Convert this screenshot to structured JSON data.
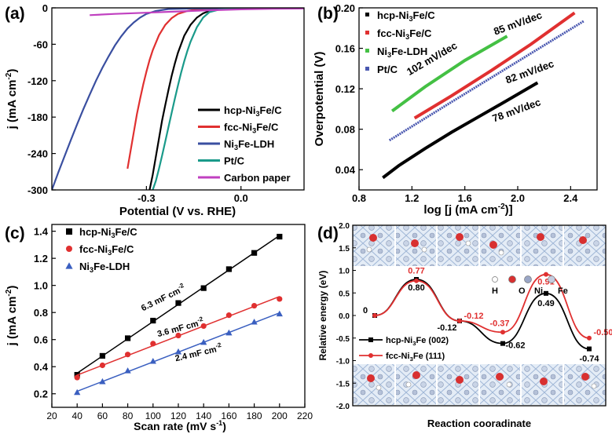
{
  "chart_data": [
    {
      "panel": "(a)",
      "type": "line",
      "xlabel": "Potential (V vs. RHE)",
      "ylabel_main": "j (mA cm",
      "ylabel_sup": "-2",
      "ylabel_end": ")",
      "xlim": [
        -0.6,
        0.2
      ],
      "ylim": [
        -300,
        0
      ],
      "xticks": [
        {
          "v": -0.3,
          "label": "-0.3"
        },
        {
          "v": 0.0,
          "label": "0.0"
        }
      ],
      "yticks": [
        {
          "v": 0,
          "label": "0"
        },
        {
          "v": -60,
          "label": "-60"
        },
        {
          "v": -120,
          "label": "-120"
        },
        {
          "v": -180,
          "label": "-180"
        },
        {
          "v": -240,
          "label": "-240"
        },
        {
          "v": -300,
          "label": "-300"
        }
      ],
      "legend": [
        {
          "text": "hcp-Ni",
          "sub": "3",
          "tail": "Fe/C"
        },
        {
          "text": "fcc-Ni",
          "sub": "3",
          "tail": "Fe/C"
        },
        {
          "text": "Ni",
          "sub": "3",
          "tail": "Fe-LDH"
        },
        {
          "text": "Pt/C",
          "sub": "",
          "tail": ""
        },
        {
          "text": "Carbon paper",
          "sub": "",
          "tail": ""
        }
      ],
      "series": [
        {
          "color": "#000000",
          "points": [
            [
              -0.29,
              -300
            ],
            [
              -0.28,
              -275
            ],
            [
              -0.27,
              -245
            ],
            [
              -0.26,
              -215
            ],
            [
              -0.25,
              -185
            ],
            [
              -0.24,
              -160
            ],
            [
              -0.23,
              -135
            ],
            [
              -0.22,
              -112
            ],
            [
              -0.21,
              -92
            ],
            [
              -0.2,
              -74
            ],
            [
              -0.18,
              -46
            ],
            [
              -0.16,
              -28
            ],
            [
              -0.14,
              -16
            ],
            [
              -0.12,
              -9
            ],
            [
              -0.1,
              -5
            ],
            [
              -0.07,
              -2
            ],
            [
              -0.03,
              -1
            ],
            [
              0.0,
              -0.5
            ],
            [
              0.2,
              -0.2
            ]
          ]
        },
        {
          "color": "#e03030",
          "points": [
            [
              -0.36,
              -265
            ],
            [
              -0.35,
              -235
            ],
            [
              -0.34,
              -205
            ],
            [
              -0.33,
              -175
            ],
            [
              -0.32,
              -150
            ],
            [
              -0.31,
              -126
            ],
            [
              -0.3,
              -105
            ],
            [
              -0.29,
              -86
            ],
            [
              -0.28,
              -70
            ],
            [
              -0.26,
              -45
            ],
            [
              -0.24,
              -28
            ],
            [
              -0.22,
              -17
            ],
            [
              -0.2,
              -10
            ],
            [
              -0.17,
              -5
            ],
            [
              -0.13,
              -2
            ],
            [
              -0.08,
              -1
            ],
            [
              0.0,
              -0.5
            ],
            [
              0.2,
              -0.2
            ]
          ]
        },
        {
          "color": "#3a4fa0",
          "points": [
            [
              -0.6,
              -300
            ],
            [
              -0.58,
              -272
            ],
            [
              -0.56,
              -245
            ],
            [
              -0.54,
              -218
            ],
            [
              -0.52,
              -192
            ],
            [
              -0.5,
              -167
            ],
            [
              -0.48,
              -143
            ],
            [
              -0.46,
              -120
            ],
            [
              -0.44,
              -99
            ],
            [
              -0.42,
              -80
            ],
            [
              -0.4,
              -62
            ],
            [
              -0.38,
              -47
            ],
            [
              -0.36,
              -34
            ],
            [
              -0.34,
              -24
            ],
            [
              -0.32,
              -16
            ],
            [
              -0.3,
              -10
            ],
            [
              -0.27,
              -5
            ],
            [
              -0.23,
              -2
            ],
            [
              -0.15,
              -1
            ],
            [
              0.0,
              -0.5
            ],
            [
              0.2,
              -0.2
            ]
          ]
        },
        {
          "color": "#1a9a8a",
          "points": [
            [
              -0.28,
              -300
            ],
            [
              -0.27,
              -285
            ],
            [
              -0.26,
              -265
            ],
            [
              -0.25,
              -243
            ],
            [
              -0.24,
              -220
            ],
            [
              -0.23,
              -196
            ],
            [
              -0.22,
              -173
            ],
            [
              -0.21,
              -150
            ],
            [
              -0.2,
              -128
            ],
            [
              -0.19,
              -107
            ],
            [
              -0.18,
              -88
            ],
            [
              -0.17,
              -71
            ],
            [
              -0.16,
              -56
            ],
            [
              -0.14,
              -32
            ],
            [
              -0.12,
              -16
            ],
            [
              -0.1,
              -7
            ],
            [
              -0.07,
              -3
            ],
            [
              -0.03,
              -1
            ],
            [
              0.2,
              -0.2
            ]
          ]
        },
        {
          "color": "#c040c0",
          "points": [
            [
              -0.48,
              -12
            ],
            [
              -0.4,
              -10
            ],
            [
              -0.3,
              -8
            ],
            [
              -0.2,
              -6
            ],
            [
              -0.1,
              -4
            ],
            [
              0.0,
              -2.5
            ],
            [
              0.1,
              -1.5
            ],
            [
              0.2,
              -1
            ]
          ]
        }
      ]
    },
    {
      "panel": "(b)",
      "type": "line",
      "xlabel_main": "log [j (mA cm",
      "xlabel_sup": "-2",
      "xlabel_end": ")]",
      "ylabel": "Overpotential (V)",
      "xlim": [
        0.8,
        2.6
      ],
      "ylim": [
        0.02,
        0.2
      ],
      "xticks": [
        {
          "v": 0.8,
          "label": "0.8"
        },
        {
          "v": 1.2,
          "label": "1.2"
        },
        {
          "v": 1.6,
          "label": "1.6"
        },
        {
          "v": 2.0,
          "label": "2.0"
        },
        {
          "v": 2.4,
          "label": "2.4"
        }
      ],
      "yticks": [
        {
          "v": 0.04,
          "label": "0.04"
        },
        {
          "v": 0.08,
          "label": "0.08"
        },
        {
          "v": 0.12,
          "label": "0.12"
        },
        {
          "v": 0.16,
          "label": "0.16"
        },
        {
          "v": 0.2,
          "label": "0.20"
        }
      ],
      "legend": [
        {
          "text": "hcp-Ni",
          "sub": "3",
          "tail": "Fe/C"
        },
        {
          "text": "fcc-Ni",
          "sub": "3",
          "tail": "Fe/C"
        },
        {
          "text": "Ni",
          "sub": "3",
          "tail": "Fe-LDH"
        },
        {
          "text": "Pt/C",
          "sub": "",
          "tail": ""
        }
      ],
      "series": [
        {
          "color": "#000000",
          "width": 4,
          "points": [
            [
              0.98,
              0.032
            ],
            [
              1.1,
              0.044
            ],
            [
              1.3,
              0.061
            ],
            [
              1.5,
              0.077
            ],
            [
              1.7,
              0.092
            ],
            [
              1.9,
              0.107
            ],
            [
              2.15,
              0.126
            ]
          ]
        },
        {
          "color": "#e03030",
          "width": 4,
          "points": [
            [
              1.22,
              0.091
            ],
            [
              1.5,
              0.113
            ],
            [
              1.8,
              0.138
            ],
            [
              2.1,
              0.164
            ],
            [
              2.43,
              0.195
            ]
          ]
        },
        {
          "color": "#44c044",
          "width": 4,
          "points": [
            [
              1.05,
              0.098
            ],
            [
              1.3,
              0.122
            ],
            [
              1.6,
              0.148
            ],
            [
              1.92,
              0.172
            ]
          ]
        },
        {
          "color": "#4a58b0",
          "width": 3,
          "dash": "2 1",
          "points": [
            [
              1.03,
              0.069
            ],
            [
              1.5,
              0.107
            ],
            [
              2.0,
              0.147
            ],
            [
              2.5,
              0.187
            ]
          ]
        }
      ],
      "annotations": [
        {
          "text": "85 mV/dec",
          "x": 1.83,
          "y": 0.173,
          "rot": -20
        },
        {
          "text": "102 mV/dec",
          "x": 1.18,
          "y": 0.133,
          "rot": -30
        },
        {
          "text": "82 mV/dec",
          "x": 1.92,
          "y": 0.125,
          "rot": -20
        },
        {
          "text": "78 mV/dec",
          "x": 1.82,
          "y": 0.087,
          "rot": -20
        }
      ]
    },
    {
      "panel": "(c)",
      "type": "scatter",
      "xlabel_main": "Scan rate (mV s",
      "xlabel_sup": "-1",
      "xlabel_end": ")",
      "ylabel_main": "j (mA cm",
      "ylabel_sup": "-2",
      "ylabel_end": ")",
      "xlim": [
        20,
        220
      ],
      "ylim": [
        0.1,
        1.45
      ],
      "xticks": [
        20,
        40,
        60,
        80,
        100,
        120,
        140,
        160,
        180,
        200,
        220
      ],
      "yticks": [
        {
          "v": 0.2,
          "label": "0.2"
        },
        {
          "v": 0.4,
          "label": "0.4"
        },
        {
          "v": 0.6,
          "label": "0.6"
        },
        {
          "v": 0.8,
          "label": "0.8"
        },
        {
          "v": 1.0,
          "label": "1.0"
        },
        {
          "v": 1.2,
          "label": "1.2"
        },
        {
          "v": 1.4,
          "label": "1.4"
        }
      ],
      "legend": [
        {
          "text": "hcp-Ni",
          "sub": "3",
          "tail": "Fe/C"
        },
        {
          "text": "fcc-Ni",
          "sub": "3",
          "tail": "Fe/C"
        },
        {
          "text": "Ni",
          "sub": "3",
          "tail": "Fe-LDH"
        }
      ],
      "x": [
        40,
        60,
        80,
        100,
        120,
        140,
        160,
        180,
        200
      ],
      "series": [
        {
          "color": "#000000",
          "marker": "square",
          "values": [
            0.34,
            0.48,
            0.61,
            0.74,
            0.87,
            0.98,
            1.12,
            1.24,
            1.36
          ]
        },
        {
          "color": "#e03030",
          "marker": "circle",
          "values": [
            0.32,
            0.41,
            0.49,
            0.57,
            0.63,
            0.7,
            0.78,
            0.85,
            0.9
          ]
        },
        {
          "color": "#3a5fc0",
          "marker": "triangle",
          "values": [
            0.21,
            0.29,
            0.37,
            0.44,
            0.51,
            0.58,
            0.65,
            0.73,
            0.79
          ]
        }
      ],
      "annotations": [
        {
          "main": "6.3 mF cm",
          "sup": "-2",
          "x": 92,
          "y": 0.81,
          "rot": -26
        },
        {
          "main": "3.6 mF cm",
          "sup": "-2",
          "x": 104,
          "y": 0.62,
          "rot": -15
        },
        {
          "main": "2.4 mF cm",
          "sup": "-2",
          "x": 118,
          "y": 0.44,
          "rot": -13
        }
      ]
    },
    {
      "panel": "(d)",
      "type": "line",
      "xlabel": "Reaction cooradinate",
      "ylabel": "Relative energy (eV)",
      "ylim": [
        -2.0,
        2.0
      ],
      "yticks": [
        {
          "v": 2.0,
          "label": "2.0"
        },
        {
          "v": 1.5,
          "label": "1.5"
        },
        {
          "v": 1.0,
          "label": "1.0"
        },
        {
          "v": 0.5,
          "label": "0.5"
        },
        {
          "v": 0.0,
          "label": "0.0"
        },
        {
          "v": -0.5,
          "label": "-0.5"
        },
        {
          "v": -1.0,
          "label": "-1.0"
        },
        {
          "v": -1.5,
          "label": "-1.5"
        },
        {
          "v": -2.0,
          "label": "-2.0"
        }
      ],
      "legend": [
        {
          "text": "hcp-Ni",
          "sub": "3",
          "tail": "Fe (002)"
        },
        {
          "text": "fcc-Ni",
          "sub": "3",
          "tail": "Fe (111)"
        }
      ],
      "atom_legend": [
        "H",
        "O",
        "Ni",
        "Fe"
      ],
      "series": [
        {
          "color": "#000000",
          "marker": "square",
          "values": [
            0,
            0.8,
            -0.12,
            -0.62,
            0.49,
            -0.74
          ]
        },
        {
          "color": "#e03030",
          "marker": "circle",
          "values": [
            0,
            0.77,
            -0.12,
            -0.37,
            0.91,
            -0.5
          ]
        }
      ],
      "labels_black": [
        "0",
        "0.80",
        "-0.12",
        "-0.62",
        "0.49",
        "-0.74"
      ],
      "labels_red": [
        "0.77",
        "-0.12",
        "-0.37",
        "0.91",
        "-0.50"
      ]
    }
  ]
}
